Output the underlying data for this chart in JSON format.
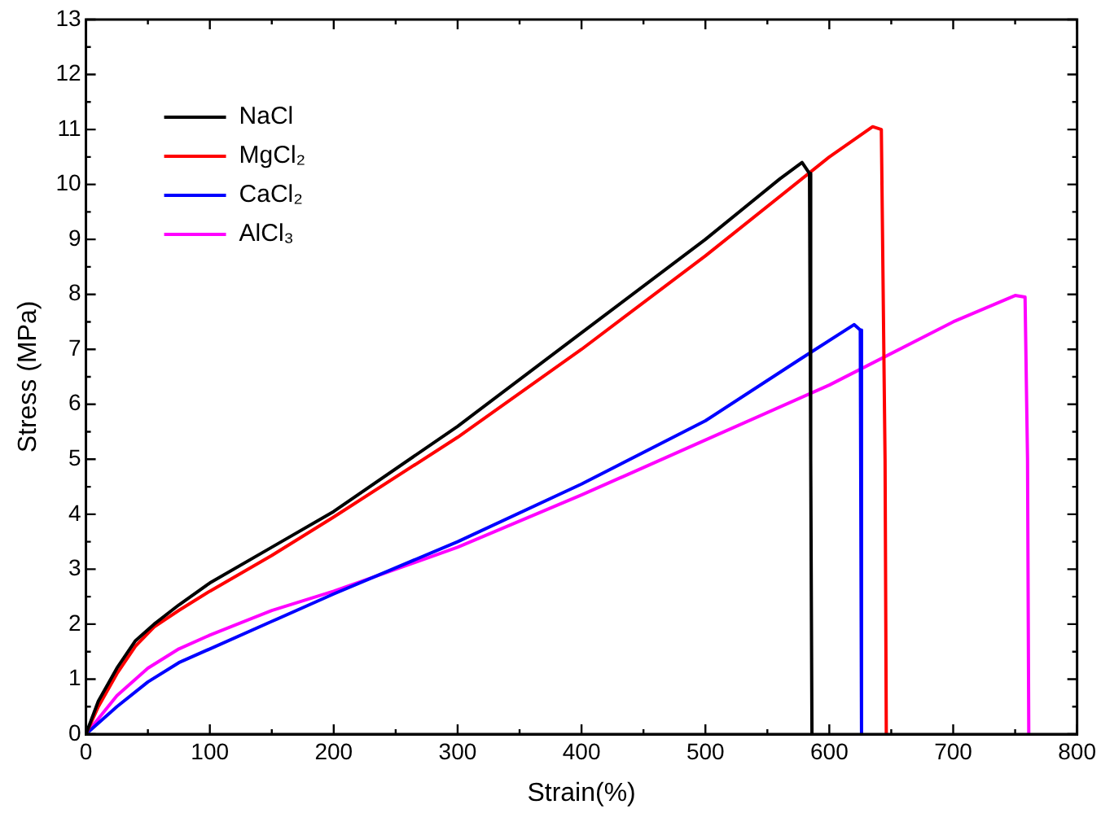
{
  "chart_data": {
    "type": "line",
    "xlabel": "Strain(%)",
    "ylabel": "Stress (MPa)",
    "xlim": [
      0,
      800
    ],
    "ylim": [
      0,
      13
    ],
    "xticks": [
      0,
      {
        "value": 50,
        "label": null
      },
      100,
      {
        "value": 150,
        "label": null
      },
      200,
      {
        "value": 250,
        "label": null
      },
      300,
      {
        "value": 350,
        "label": null
      },
      400,
      {
        "value": 450,
        "label": null
      },
      500,
      {
        "value": 550,
        "label": null
      },
      600,
      {
        "value": 650,
        "label": null
      },
      700,
      {
        "value": 750,
        "label": null
      },
      800
    ],
    "yticks": [
      0,
      {
        "value": 0.5,
        "label": null
      },
      1,
      {
        "value": 1.5,
        "label": null
      },
      2,
      {
        "value": 2.5,
        "label": null
      },
      3,
      {
        "value": 3.5,
        "label": null
      },
      4,
      {
        "value": 4.5,
        "label": null
      },
      5,
      {
        "value": 5.5,
        "label": null
      },
      6,
      {
        "value": 6.5,
        "label": null
      },
      7,
      {
        "value": 7.5,
        "label": null
      },
      8,
      {
        "value": 8.5,
        "label": null
      },
      9,
      {
        "value": 9.5,
        "label": null
      },
      10,
      {
        "value": 10.5,
        "label": null
      },
      11,
      {
        "value": 11.5,
        "label": null
      },
      12,
      {
        "value": 12.5,
        "label": null
      },
      13
    ],
    "grid": false,
    "legend": "top left",
    "marker": "none",
    "line_style": "solid",
    "series": [
      {
        "name": "NaCl",
        "color": "#000000",
        "x": [
          0,
          10,
          25,
          40,
          55,
          75,
          100,
          150,
          200,
          300,
          400,
          500,
          560,
          578,
          584,
          585,
          586
        ],
        "values": [
          0,
          0.6,
          1.2,
          1.7,
          2.0,
          2.35,
          2.75,
          3.4,
          4.05,
          5.6,
          7.3,
          9.0,
          10.1,
          10.4,
          10.2,
          5,
          0
        ]
      },
      {
        "name": "MgCl₂",
        "color": "#ff0000",
        "x": [
          0,
          10,
          25,
          40,
          55,
          75,
          100,
          150,
          200,
          300,
          400,
          500,
          600,
          635,
          642,
          645,
          646
        ],
        "values": [
          0,
          0.5,
          1.1,
          1.6,
          1.95,
          2.25,
          2.6,
          3.25,
          3.95,
          5.4,
          7.0,
          8.7,
          10.5,
          11.05,
          11.0,
          5,
          0
        ]
      },
      {
        "name": "CaCl₂",
        "color": "#0000ff",
        "x": [
          0,
          25,
          50,
          75,
          100,
          150,
          200,
          300,
          400,
          500,
          575,
          620,
          625,
          626
        ],
        "values": [
          0,
          0.5,
          0.95,
          1.3,
          1.55,
          2.05,
          2.55,
          3.5,
          4.55,
          5.7,
          6.8,
          7.45,
          7.35,
          0
        ]
      },
      {
        "name": "AlCl₃",
        "color": "#ff00ff",
        "x": [
          0,
          25,
          50,
          75,
          100,
          150,
          200,
          300,
          400,
          500,
          600,
          700,
          750,
          758,
          760,
          761
        ],
        "values": [
          0,
          0.7,
          1.2,
          1.55,
          1.8,
          2.25,
          2.6,
          3.4,
          4.35,
          5.35,
          6.35,
          7.5,
          7.98,
          7.95,
          5,
          0
        ]
      }
    ]
  }
}
